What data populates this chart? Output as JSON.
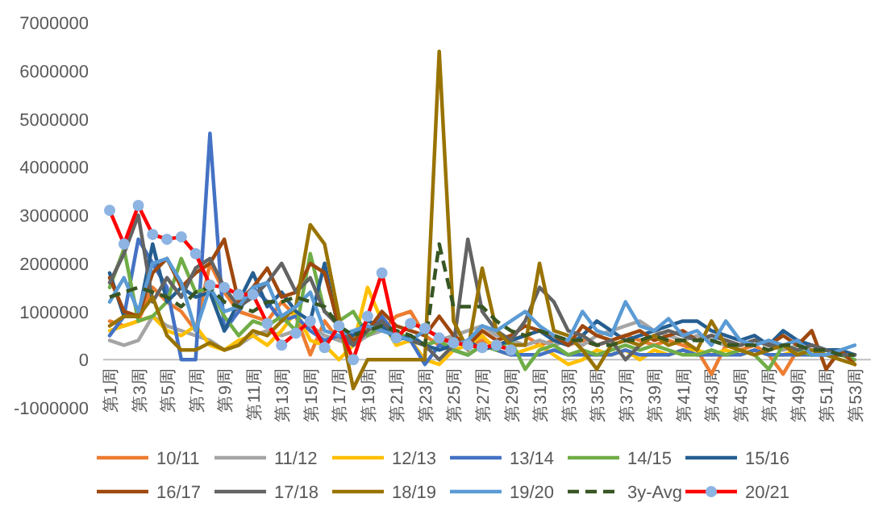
{
  "chart_data": {
    "type": "line",
    "categories": [
      "第1周",
      null,
      "第3周",
      null,
      "第5周",
      null,
      "第7周",
      null,
      "第9周",
      null,
      "第11周",
      null,
      "第13周",
      null,
      "第15周",
      null,
      "第17周",
      null,
      "第19周",
      null,
      "第21周",
      null,
      "第23周",
      null,
      "第25周",
      null,
      "第27周",
      null,
      "第29周",
      null,
      "第31周",
      null,
      "第33周",
      null,
      "第35周",
      null,
      "第37周",
      null,
      "第39周",
      null,
      "第41周",
      null,
      "第43周",
      null,
      "第45周",
      null,
      "第47周",
      null,
      "第49周",
      null,
      "第51周",
      null,
      "第53周"
    ],
    "ylim": [
      -1000000,
      7000000
    ],
    "yticks": [
      -1000000,
      0,
      1000000,
      2000000,
      3000000,
      4000000,
      5000000,
      6000000,
      7000000
    ],
    "grid": false,
    "legend": "bottom",
    "series": [
      {
        "name": "10/11",
        "color": "#ed7d31",
        "values": [
          800000,
          700000,
          800000,
          1500000,
          1200000,
          1000000,
          600000,
          2000000,
          1400000,
          1000000,
          900000,
          800000,
          1200000,
          900000,
          100000,
          800000,
          400000,
          500000,
          700000,
          600000,
          900000,
          1000000,
          500000,
          300000,
          500000,
          300000,
          400000,
          300000,
          400000,
          500000,
          300000,
          400000,
          300000,
          400000,
          300000,
          400000,
          500000,
          400000,
          300000,
          400000,
          300000,
          200000,
          -300000,
          300000,
          200000,
          300000,
          100000,
          -300000,
          200000,
          300000,
          null,
          null,
          null
        ]
      },
      {
        "name": "11/12",
        "color": "#a5a5a5",
        "values": [
          400000,
          300000,
          400000,
          900000,
          700000,
          600000,
          500000,
          400000,
          200000,
          300000,
          500000,
          600000,
          500000,
          600000,
          700000,
          500000,
          400000,
          300000,
          500000,
          600000,
          500000,
          400000,
          300000,
          400000,
          500000,
          600000,
          700000,
          500000,
          400000,
          300000,
          400000,
          300000,
          400000,
          300000,
          500000,
          600000,
          700000,
          800000,
          600000,
          500000,
          400000,
          500000,
          400000,
          300000,
          300000,
          400000,
          300000,
          200000,
          300000,
          200000,
          200000,
          100000,
          100000
        ]
      },
      {
        "name": "12/13",
        "color": "#ffc000",
        "values": [
          600000,
          700000,
          800000,
          900000,
          600000,
          500000,
          700000,
          300000,
          200000,
          400000,
          500000,
          300000,
          600000,
          1000000,
          400000,
          300000,
          0,
          300000,
          1500000,
          800000,
          300000,
          400000,
          0,
          -100000,
          200000,
          300000,
          500000,
          200000,
          100000,
          200000,
          300000,
          100000,
          -100000,
          0,
          200000,
          100000,
          200000,
          0,
          200000,
          100000,
          200000,
          200000,
          100000,
          200000,
          100000,
          200000,
          100000,
          100000,
          200000,
          100000,
          null,
          null,
          null
        ]
      },
      {
        "name": "13/14",
        "color": "#4472c4",
        "values": [
          500000,
          900000,
          2500000,
          2000000,
          1500000,
          0,
          0,
          4700000,
          600000,
          1000000,
          1500000,
          1200000,
          800000,
          900000,
          600000,
          400000,
          500000,
          300000,
          600000,
          900000,
          500000,
          400000,
          -100000,
          300000,
          200000,
          100000,
          300000,
          200000,
          100000,
          100000,
          100000,
          200000,
          100000,
          100000,
          100000,
          100000,
          200000,
          100000,
          100000,
          100000,
          200000,
          100000,
          100000,
          100000,
          100000,
          200000,
          100000,
          100000,
          100000,
          100000,
          100000,
          100000,
          100000
        ]
      },
      {
        "name": "14/15",
        "color": "#70ad47",
        "values": [
          1500000,
          2300000,
          800000,
          900000,
          1200000,
          2100000,
          1400000,
          1500000,
          900000,
          500000,
          800000,
          700000,
          900000,
          600000,
          2200000,
          1000000,
          800000,
          1000000,
          500000,
          700000,
          600000,
          400000,
          300000,
          400000,
          200000,
          100000,
          300000,
          200000,
          400000,
          -200000,
          200000,
          300000,
          100000,
          200000,
          100000,
          200000,
          300000,
          200000,
          300000,
          200000,
          100000,
          100000,
          200000,
          100000,
          200000,
          100000,
          -200000,
          300000,
          200000,
          100000,
          200000,
          100000,
          0
        ]
      },
      {
        "name": "15/16",
        "color": "#255e91",
        "values": [
          1800000,
          900000,
          900000,
          2400000,
          1200000,
          1500000,
          1300000,
          1400000,
          600000,
          1200000,
          1800000,
          1100000,
          1400000,
          1000000,
          800000,
          2000000,
          600000,
          500000,
          800000,
          700000,
          400000,
          500000,
          300000,
          200000,
          300000,
          400000,
          200000,
          300000,
          400000,
          500000,
          600000,
          400000,
          300000,
          500000,
          800000,
          600000,
          400000,
          500000,
          600000,
          700000,
          800000,
          800000,
          600000,
          500000,
          400000,
          500000,
          300000,
          600000,
          400000,
          300000,
          200000,
          200000,
          100000
        ]
      },
      {
        "name": "16/17",
        "color": "#9e480e",
        "values": [
          1700000,
          1000000,
          900000,
          1800000,
          2100000,
          1500000,
          1800000,
          2000000,
          2500000,
          1200000,
          1500000,
          1900000,
          1300000,
          1400000,
          2000000,
          1800000,
          700000,
          400000,
          600000,
          1000000,
          700000,
          600000,
          500000,
          900000,
          500000,
          300000,
          600000,
          400000,
          500000,
          700000,
          600000,
          500000,
          300000,
          700000,
          500000,
          400000,
          500000,
          600000,
          400000,
          500000,
          600000,
          400000,
          500000,
          400000,
          300000,
          400000,
          300000,
          500000,
          300000,
          600000,
          -200000,
          200000,
          -100000
        ]
      },
      {
        "name": "17/18",
        "color": "#636363",
        "values": [
          1600000,
          2200000,
          3000000,
          1200000,
          1700000,
          1300000,
          1900000,
          2100000,
          1500000,
          1100000,
          1300000,
          1600000,
          2000000,
          1400000,
          1700000,
          1000000,
          700000,
          300000,
          600000,
          800000,
          500000,
          400000,
          300000,
          0,
          300000,
          2500000,
          1000000,
          600000,
          400000,
          800000,
          1500000,
          1200000,
          600000,
          500000,
          300000,
          400000,
          0,
          300000,
          500000,
          600000,
          500000,
          400000,
          500000,
          400000,
          300000,
          400000,
          300000,
          300000,
          200000,
          300000,
          200000,
          100000,
          100000
        ]
      },
      {
        "name": "18/19",
        "color": "#997300",
        "values": [
          700000,
          900000,
          900000,
          1300000,
          500000,
          200000,
          200000,
          350000,
          200000,
          300000,
          600000,
          500000,
          800000,
          1100000,
          2800000,
          2400000,
          900000,
          -600000,
          0,
          0,
          0,
          0,
          0,
          6400000,
          800000,
          200000,
          1900000,
          600000,
          300000,
          300000,
          2000000,
          600000,
          500000,
          200000,
          -200000,
          300000,
          400000,
          300000,
          500000,
          300000,
          400000,
          200000,
          800000,
          300000,
          200000,
          100000,
          200000,
          300000,
          100000,
          200000,
          100000,
          0,
          -100000
        ]
      },
      {
        "name": "19/20",
        "color": "#5b9bd5",
        "values": [
          1200000,
          1700000,
          1000000,
          2000000,
          2100000,
          1600000,
          600000,
          1500000,
          1000000,
          1100000,
          1500000,
          1600000,
          900000,
          1100000,
          1400000,
          600000,
          500000,
          600000,
          700000,
          600000,
          500000,
          400000,
          600000,
          500000,
          300000,
          400000,
          700000,
          600000,
          800000,
          1000000,
          700000,
          500000,
          400000,
          1000000,
          600000,
          500000,
          1200000,
          700000,
          600000,
          850000,
          500000,
          600000,
          300000,
          800000,
          400000,
          300000,
          400000,
          300000,
          400000,
          100000,
          100000,
          200000,
          300000
        ]
      },
      {
        "name": "3y-Avg",
        "color": "#375623",
        "line_style": "dashed",
        "values": [
          1300000,
          1400000,
          1500000,
          1400000,
          1300000,
          1100000,
          1400000,
          1500000,
          1200000,
          1100000,
          1000000,
          1200000,
          1200000,
          1300000,
          1200000,
          1100000,
          700000,
          500000,
          600000,
          700000,
          600000,
          500000,
          300000,
          2400000,
          1100000,
          1100000,
          1100000,
          800000,
          600000,
          500000,
          600000,
          500000,
          400000,
          400000,
          300000,
          300000,
          400000,
          400000,
          500000,
          400000,
          400000,
          400000,
          400000,
          300000,
          300000,
          300000,
          200000,
          300000,
          300000,
          200000,
          200000,
          100000,
          100000
        ]
      },
      {
        "name": "20/21",
        "color": "#ff0000",
        "marker": "circle",
        "values": [
          3100000,
          2400000,
          3200000,
          2600000,
          2500000,
          2550000,
          2200000,
          1550000,
          1500000,
          1350000,
          1350000,
          750000,
          300000,
          550000,
          800000,
          250000,
          700000,
          0,
          900000,
          1800000,
          450000,
          750000,
          650000,
          450000,
          350000,
          300000,
          250000,
          300000,
          200000,
          null,
          null,
          null,
          null,
          null,
          null,
          null,
          null,
          null,
          null,
          null,
          null,
          null,
          null,
          null,
          null,
          null,
          null,
          null,
          null,
          null,
          null,
          null,
          null
        ]
      }
    ]
  }
}
